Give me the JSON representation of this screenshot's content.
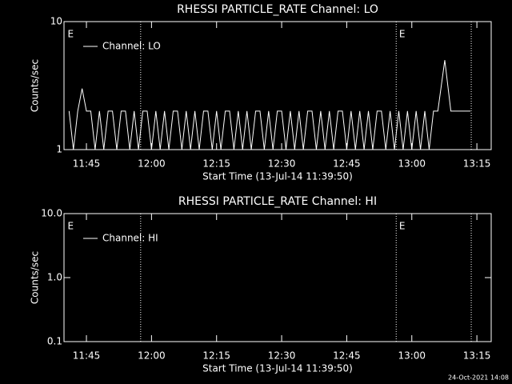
{
  "chart_data": [
    {
      "type": "line",
      "title": "RHESSI PARTICLE_RATE Channel: LO",
      "xlabel": "Start Time (13-Jul-14 11:39:50)",
      "ylabel": "Counts/sec",
      "log_y": true,
      "ylim": [
        1,
        10
      ],
      "yticks": [
        1,
        10
      ],
      "xlim": [
        699.83,
        798.3
      ],
      "xticks": [
        {
          "value": 705,
          "label": "11:45"
        },
        {
          "value": 720,
          "label": "12:00"
        },
        {
          "value": 735,
          "label": "12:15"
        },
        {
          "value": 750,
          "label": "12:30"
        },
        {
          "value": 765,
          "label": "12:45"
        },
        {
          "value": 780,
          "label": "13:00"
        },
        {
          "value": 795,
          "label": "13:15"
        }
      ],
      "vlines": [
        717.5,
        776.4,
        793.7
      ],
      "annotations": [
        {
          "text": "E",
          "x": 700.3
        },
        {
          "text": "E",
          "x": 776.7
        }
      ],
      "legend": "upper left",
      "series": [
        {
          "name": "Channel: LO",
          "color": "#ffffff",
          "x": [
            701,
            702,
            703,
            704,
            705,
            706,
            707,
            708,
            709,
            710,
            711,
            712,
            713,
            714,
            715,
            716,
            717,
            718,
            719,
            720,
            721,
            722,
            723,
            724,
            725,
            726,
            727,
            728,
            729,
            730,
            731,
            732,
            733,
            734,
            735,
            736,
            737,
            738,
            739,
            740,
            741,
            742,
            743,
            744,
            745,
            746,
            747,
            748,
            749,
            750,
            751,
            752,
            753,
            754,
            755,
            756,
            757,
            758,
            759,
            760,
            761,
            762,
            763,
            764,
            765,
            766,
            767,
            768,
            769,
            770,
            771,
            772,
            773,
            774,
            775,
            776,
            777,
            778,
            779,
            780,
            781,
            782,
            783,
            784,
            785,
            786,
            787.6,
            789,
            793.5
          ],
          "values": [
            2,
            1,
            2,
            3,
            2,
            2,
            1,
            2,
            1,
            2,
            2,
            1,
            2,
            2,
            1,
            2,
            1,
            2,
            2,
            1,
            2,
            1,
            2,
            1,
            2,
            2,
            1,
            2,
            1,
            2,
            1,
            2,
            2,
            1,
            2,
            1,
            2,
            2,
            1,
            2,
            1,
            2,
            1,
            2,
            2,
            1,
            2,
            1,
            2,
            2,
            1,
            2,
            1,
            2,
            1,
            2,
            2,
            1,
            2,
            1,
            2,
            1,
            2,
            2,
            1,
            2,
            1,
            2,
            1,
            2,
            1,
            2,
            2,
            1,
            2,
            1,
            2,
            1,
            2,
            1,
            2,
            1,
            2,
            1,
            2,
            2,
            5,
            2,
            2
          ]
        }
      ]
    },
    {
      "type": "line",
      "title": "RHESSI PARTICLE_RATE Channel: HI",
      "xlabel": "Start Time (13-Jul-14 11:39:50)",
      "ylabel": "Counts/sec",
      "log_y": true,
      "ylim": [
        0.1,
        10
      ],
      "yticks": [
        {
          "value": 0.1,
          "label": "0.1"
        },
        {
          "value": 1,
          "label": "1.0"
        },
        {
          "value": 10,
          "label": "10.0"
        }
      ],
      "xlim": [
        699.83,
        798.3
      ],
      "xticks": [
        {
          "value": 705,
          "label": "11:45"
        },
        {
          "value": 720,
          "label": "12:00"
        },
        {
          "value": 735,
          "label": "12:15"
        },
        {
          "value": 750,
          "label": "12:30"
        },
        {
          "value": 765,
          "label": "12:45"
        },
        {
          "value": 780,
          "label": "13:00"
        },
        {
          "value": 795,
          "label": "13:15"
        }
      ],
      "vlines": [
        717.5,
        776.4,
        793.7
      ],
      "annotations": [
        {
          "text": "E",
          "x": 700.3
        },
        {
          "text": "E",
          "x": 776.7
        }
      ],
      "legend": "upper left",
      "series": [
        {
          "name": "Channel: HI",
          "color": "#ffffff",
          "x": [],
          "values": []
        }
      ]
    }
  ],
  "footer": "24-Oct-2021 14:08"
}
